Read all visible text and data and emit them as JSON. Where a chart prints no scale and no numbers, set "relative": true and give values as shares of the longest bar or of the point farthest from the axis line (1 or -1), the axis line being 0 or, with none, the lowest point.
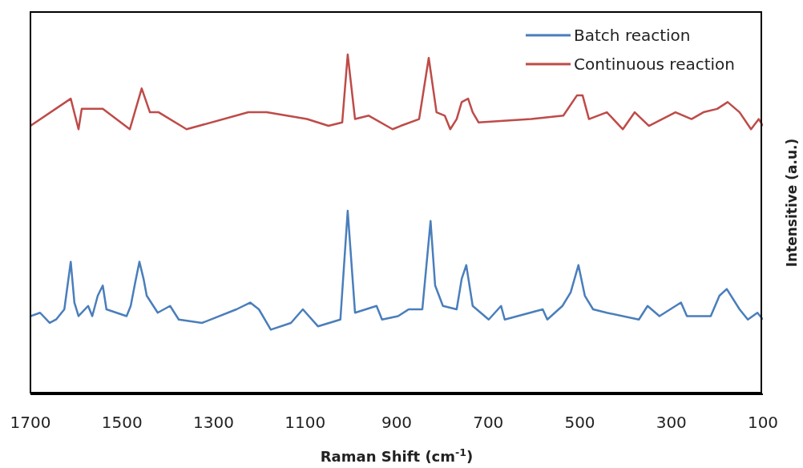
{
  "chart_data": {
    "type": "line",
    "xlabel": "Raman Shift (cm$^{-1}$)",
    "ylabel": "Intensitive (a.u.)",
    "relative": true,
    "xlim": [
      1700,
      100
    ],
    "xticks": [
      1700,
      1500,
      1300,
      1100,
      900,
      700,
      500,
      300,
      100
    ],
    "grid": false,
    "legend": "top right",
    "marker": "none",
    "line_style": "solid",
    "series": [
      {
        "name": "Batch reaction",
        "color": "#4a7ebb",
        "x": [
          1700,
          1679,
          1658,
          1644,
          1626,
          1612,
          1604,
          1595,
          1574,
          1565,
          1553,
          1542,
          1534,
          1490,
          1481,
          1471,
          1462,
          1453,
          1446,
          1422,
          1395,
          1376,
          1325,
          1250,
          1220,
          1201,
          1175,
          1131,
          1105,
          1072,
          1023,
          1007,
          991,
          944,
          932,
          897,
          874,
          844,
          826,
          816,
          799,
          769,
          758,
          748,
          734,
          699,
          672,
          664,
          581,
          571,
          538,
          520,
          503,
          489,
          471,
          441,
          371,
          352,
          326,
          279,
          266,
          214,
          195,
          179,
          151,
          133,
          112,
          100
        ],
        "values": [
          0.23,
          0.24,
          0.21,
          0.22,
          0.25,
          0.39,
          0.27,
          0.23,
          0.26,
          0.23,
          0.29,
          0.32,
          0.25,
          0.23,
          0.26,
          0.33,
          0.39,
          0.34,
          0.29,
          0.24,
          0.26,
          0.22,
          0.21,
          0.25,
          0.27,
          0.25,
          0.19,
          0.21,
          0.25,
          0.2,
          0.22,
          0.54,
          0.24,
          0.26,
          0.22,
          0.23,
          0.25,
          0.25,
          0.51,
          0.32,
          0.26,
          0.25,
          0.34,
          0.38,
          0.26,
          0.22,
          0.26,
          0.22,
          0.25,
          0.22,
          0.26,
          0.3,
          0.38,
          0.29,
          0.25,
          0.24,
          0.22,
          0.26,
          0.23,
          0.27,
          0.23,
          0.23,
          0.29,
          0.31,
          0.25,
          0.22,
          0.24,
          0.22
        ]
      },
      {
        "name": "Continuous reaction",
        "color": "#be4b48",
        "x": [
          1700,
          1612,
          1595,
          1588,
          1542,
          1483,
          1457,
          1439,
          1420,
          1359,
          1224,
          1184,
          1096,
          1049,
          1019,
          1007,
          991,
          961,
          909,
          891,
          851,
          830,
          813,
          795,
          783,
          769,
          758,
          744,
          734,
          721,
          606,
          536,
          506,
          494,
          480,
          441,
          406,
          380,
          349,
          291,
          256,
          230,
          200,
          177,
          151,
          126,
          109,
          100
        ],
        "values": [
          0.79,
          0.87,
          0.78,
          0.84,
          0.84,
          0.78,
          0.9,
          0.83,
          0.83,
          0.78,
          0.83,
          0.83,
          0.81,
          0.79,
          0.8,
          1,
          0.81,
          0.82,
          0.78,
          0.79,
          0.81,
          0.99,
          0.83,
          0.82,
          0.78,
          0.81,
          0.86,
          0.87,
          0.83,
          0.8,
          0.81,
          0.82,
          0.88,
          0.88,
          0.81,
          0.83,
          0.78,
          0.83,
          0.79,
          0.83,
          0.81,
          0.83,
          0.84,
          0.86,
          0.83,
          0.78,
          0.81,
          0.79
        ]
      }
    ]
  }
}
